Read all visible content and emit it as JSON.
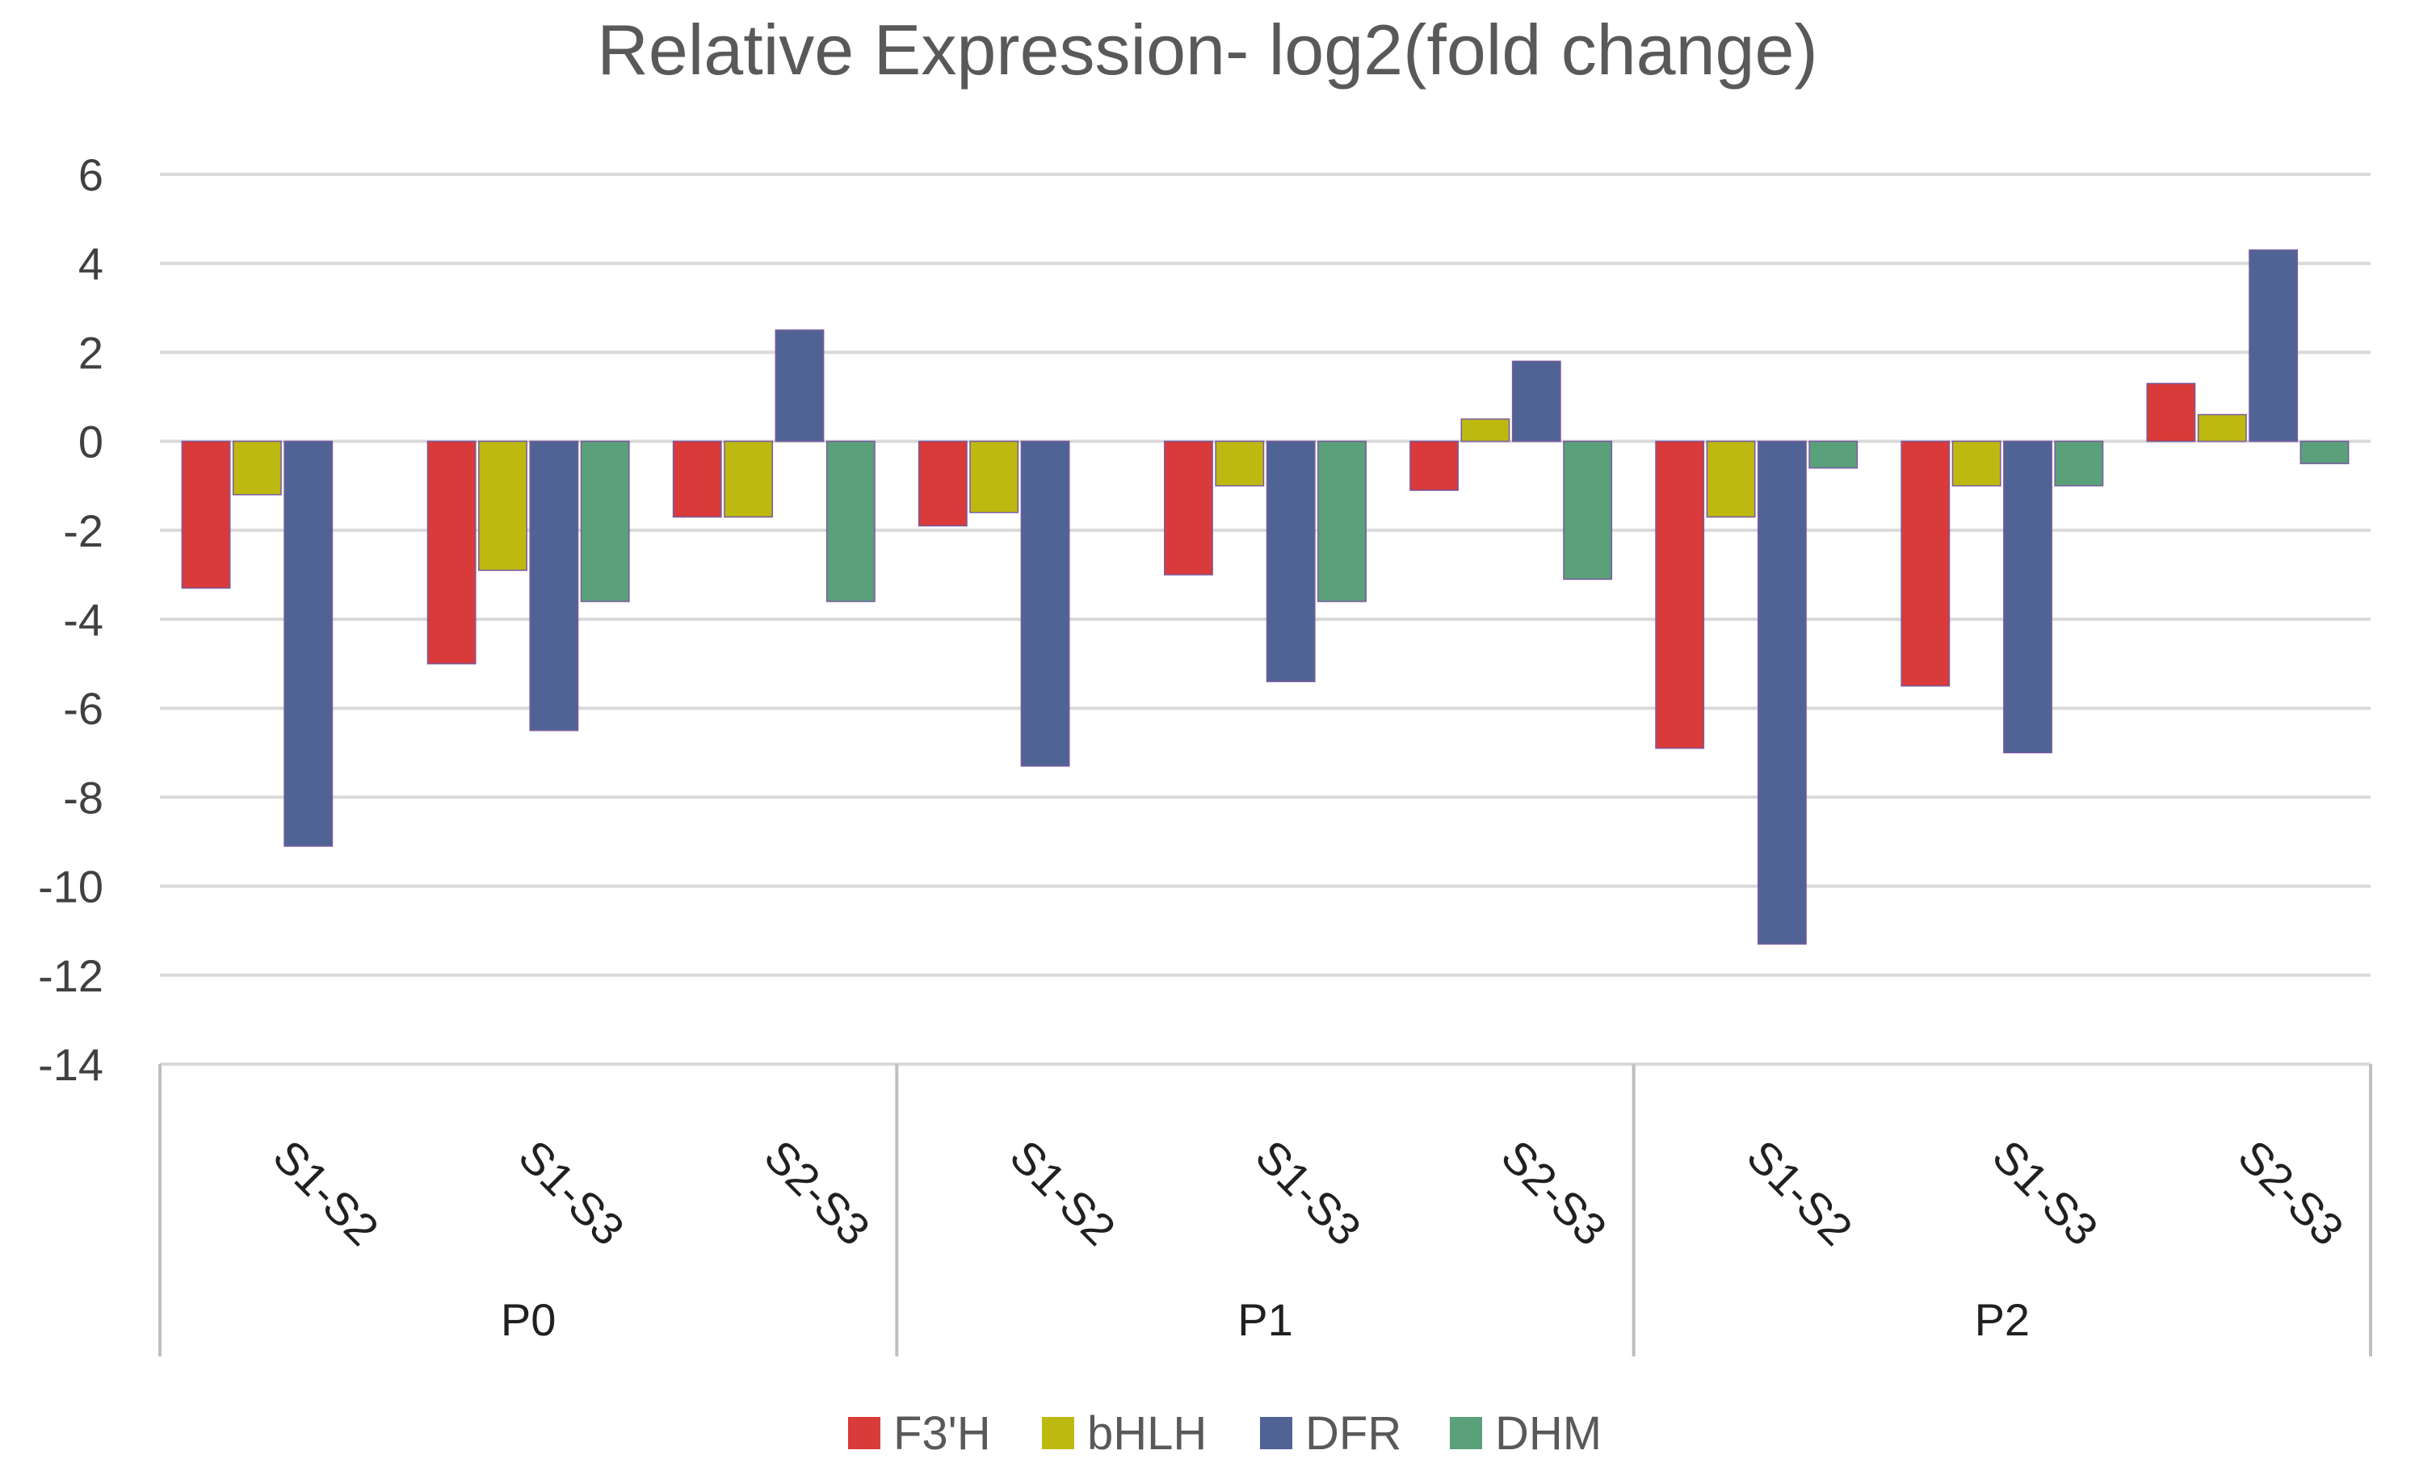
{
  "chart_data": {
    "type": "bar",
    "title": "Relative Expression- log2(fold change)",
    "xlabel": "",
    "ylabel": "",
    "ylim": [
      -14,
      6
    ],
    "yticks": [
      6,
      4,
      2,
      0,
      -2,
      -4,
      -6,
      -8,
      -10,
      -12,
      -14
    ],
    "ytick_labels": [
      "6",
      "4",
      "2",
      "0",
      "-2",
      "-4",
      "-6",
      "-8",
      "-10",
      "-12",
      "-14"
    ],
    "groups": [
      "P0",
      "P1",
      "P2"
    ],
    "categories": [
      "S1-S2",
      "S1-S3",
      "S2-S3",
      "S1-S2",
      "S1-S3",
      "S2-S3",
      "S1-S2",
      "S1-S3",
      "S2-S3"
    ],
    "series": [
      {
        "name": "F3'H",
        "color": "#d93a3a",
        "values": [
          -3.3,
          -5.0,
          -1.7,
          -1.9,
          -3.0,
          -1.1,
          -6.9,
          -5.5,
          1.3
        ]
      },
      {
        "name": "bHLH",
        "color": "#bdb911",
        "values": [
          -1.2,
          -2.9,
          -1.7,
          -1.6,
          -1.0,
          0.5,
          -1.7,
          -1.0,
          0.6
        ]
      },
      {
        "name": "DFR",
        "color": "#4f6494",
        "values": [
          -9.1,
          -6.5,
          2.5,
          -7.3,
          -5.4,
          1.8,
          -11.3,
          -7.0,
          4.3
        ]
      },
      {
        "name": "DHM",
        "color": "#5aa07a",
        "values": [
          0,
          -3.6,
          -3.6,
          0,
          -3.6,
          -3.1,
          -0.6,
          -1.0,
          -0.5
        ]
      }
    ],
    "legend_position": "bottom",
    "grid": true
  }
}
